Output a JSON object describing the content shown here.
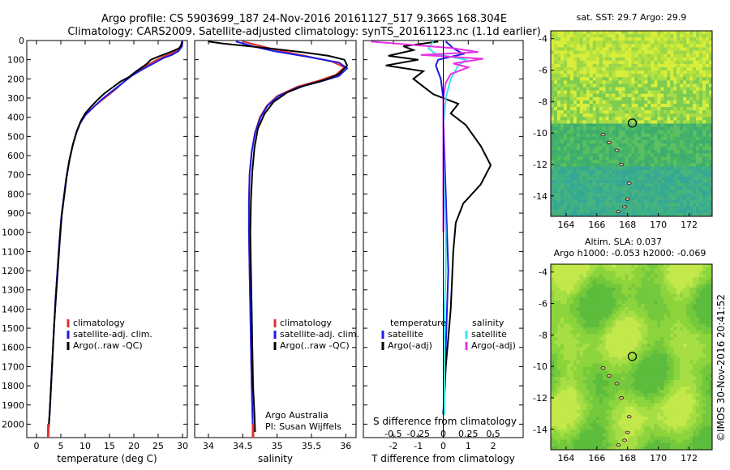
{
  "header": {
    "line1": "Argo profile: CS 5903699_187 24-Nov-2016 20161127_517 9.366S 168.304E",
    "line2": "Climatology: CARS2009. Satellite-adjusted climatology: synTS_20161123.nc (1.1d earlier)"
  },
  "side_text": "©IMOS 30-Nov-2016 20:41:52",
  "colors": {
    "clim": "#e03030",
    "sat": "#1a1ae6",
    "argo": "#000000",
    "sal_sat": "#33e6e6",
    "sal_argo": "#e633e6"
  },
  "chart_data": [
    {
      "type": "line",
      "id": "temperature",
      "xlabel": "temperature (deg C)",
      "xlim": [
        -2,
        31
      ],
      "ylim": [
        2070,
        0
      ],
      "xticks": [
        "0",
        "5",
        "10",
        "15",
        "20",
        "25",
        "30"
      ],
      "yticks": [
        "0",
        "100",
        "200",
        "300",
        "400",
        "500",
        "600",
        "700",
        "800",
        "900",
        "1000",
        "1100",
        "1200",
        "1300",
        "1400",
        "1500",
        "1600",
        "1700",
        "1800",
        "1900",
        "2000"
      ],
      "legend": [
        "climatology",
        "satellite-adj. clim.",
        "Argo(..raw -QC)"
      ],
      "series": [
        {
          "name": "climatology",
          "color": "#e03030",
          "points": [
            [
              30,
              5
            ],
            [
              29.8,
              30
            ],
            [
              29,
              50
            ],
            [
              27.5,
              70
            ],
            [
              26,
              85
            ],
            [
              24,
              110
            ],
            [
              22,
              140
            ],
            [
              20,
              175
            ],
            [
              18,
              215
            ],
            [
              16,
              260
            ],
            [
              14,
              300
            ],
            [
              12,
              340
            ],
            [
              10,
              390
            ],
            [
              9,
              430
            ],
            [
              8.2,
              480
            ],
            [
              7.4,
              550
            ],
            [
              6.7,
              630
            ],
            [
              6.1,
              720
            ],
            [
              5.6,
              820
            ],
            [
              5.1,
              920
            ],
            [
              4.7,
              1050
            ],
            [
              4.3,
              1200
            ],
            [
              3.9,
              1350
            ],
            [
              3.6,
              1500
            ],
            [
              3.3,
              1650
            ],
            [
              3.0,
              1800
            ],
            [
              2.7,
              1950
            ],
            [
              2.4,
              2060
            ]
          ]
        },
        {
          "name": "satellite-adj. clim.",
          "color": "#1a1ae6",
          "points": [
            [
              30,
              5
            ],
            [
              29.9,
              30
            ],
            [
              29.2,
              55
            ],
            [
              27.8,
              75
            ],
            [
              26.2,
              90
            ],
            [
              24,
              120
            ],
            [
              21.8,
              150
            ],
            [
              19.5,
              185
            ],
            [
              17.5,
              225
            ],
            [
              15.5,
              265
            ],
            [
              13.5,
              305
            ],
            [
              11.8,
              345
            ],
            [
              10,
              390
            ],
            [
              9,
              430
            ],
            [
              8.2,
              480
            ],
            [
              7.4,
              550
            ],
            [
              6.7,
              630
            ],
            [
              6.1,
              720
            ],
            [
              5.6,
              820
            ],
            [
              5.1,
              920
            ],
            [
              4.7,
              1050
            ],
            [
              4.3,
              1200
            ],
            [
              3.9,
              1350
            ],
            [
              3.6,
              1500
            ],
            [
              3.3,
              1650
            ],
            [
              3.0,
              1800
            ],
            [
              2.7,
              1950
            ],
            [
              2.4,
              2060
            ]
          ]
        },
        {
          "name": "Argo(..raw -QC)",
          "color": "#000000",
          "points": [
            [
              29.9,
              5
            ],
            [
              29.7,
              25
            ],
            [
              29.3,
              40
            ],
            [
              28,
              55
            ],
            [
              26.5,
              70
            ],
            [
              25.2,
              82
            ],
            [
              23.5,
              100
            ],
            [
              22.5,
              125
            ],
            [
              20.5,
              160
            ],
            [
              19,
              190
            ],
            [
              17.2,
              215
            ],
            [
              15.6,
              245
            ],
            [
              14,
              275
            ],
            [
              12.5,
              310
            ],
            [
              11.2,
              345
            ],
            [
              10,
              380
            ],
            [
              9.1,
              420
            ],
            [
              8.3,
              470
            ],
            [
              7.5,
              540
            ],
            [
              6.8,
              620
            ],
            [
              6.2,
              710
            ],
            [
              5.7,
              810
            ],
            [
              5.2,
              910
            ],
            [
              4.8,
              1040
            ],
            [
              4.4,
              1190
            ],
            [
              4.0,
              1340
            ],
            [
              3.6,
              1490
            ],
            [
              3.3,
              1640
            ],
            [
              3.0,
              1790
            ],
            [
              2.7,
              1940
            ],
            [
              2.4,
              2050
            ]
          ]
        }
      ]
    },
    {
      "type": "line",
      "id": "salinity",
      "xlabel": "salinity",
      "xlim": [
        33.8,
        36.15
      ],
      "ylim": [
        2070,
        0
      ],
      "xticks": [
        "34",
        "34.5",
        "35",
        "35.5",
        "36"
      ],
      "legend": [
        "climatology",
        "satellite-adj. clim.",
        "Argo(..raw -QC)"
      ],
      "annotation_lines": [
        "Argo Australia",
        "PI: Susan Wijffels"
      ],
      "series": [
        {
          "name": "climatology",
          "color": "#e03030",
          "points": [
            [
              34.5,
              5
            ],
            [
              34.72,
              25
            ],
            [
              35.0,
              50
            ],
            [
              35.4,
              80
            ],
            [
              35.8,
              110
            ],
            [
              35.98,
              140
            ],
            [
              35.85,
              180
            ],
            [
              35.6,
              210
            ],
            [
              35.3,
              240
            ],
            [
              35.0,
              290
            ],
            [
              34.85,
              340
            ],
            [
              34.75,
              400
            ],
            [
              34.68,
              480
            ],
            [
              34.63,
              580
            ],
            [
              34.6,
              700
            ],
            [
              34.59,
              850
            ],
            [
              34.59,
              1000
            ],
            [
              34.6,
              1200
            ],
            [
              34.61,
              1400
            ],
            [
              34.62,
              1600
            ],
            [
              34.63,
              1800
            ],
            [
              34.65,
              2060
            ]
          ]
        },
        {
          "name": "satellite-adj. clim.",
          "color": "#1a1ae6",
          "points": [
            [
              34.4,
              5
            ],
            [
              34.65,
              30
            ],
            [
              34.95,
              55
            ],
            [
              35.45,
              85
            ],
            [
              35.9,
              115
            ],
            [
              36.02,
              145
            ],
            [
              35.9,
              185
            ],
            [
              35.62,
              215
            ],
            [
              35.3,
              245
            ],
            [
              35.02,
              290
            ],
            [
              34.86,
              340
            ],
            [
              34.76,
              400
            ],
            [
              34.68,
              480
            ],
            [
              34.63,
              580
            ],
            [
              34.6,
              700
            ],
            [
              34.59,
              850
            ],
            [
              34.59,
              1000
            ],
            [
              34.6,
              1200
            ],
            [
              34.61,
              1400
            ],
            [
              34.62,
              1600
            ],
            [
              34.63,
              1800
            ],
            [
              34.65,
              2060
            ]
          ]
        },
        {
          "name": "Argo(..raw -QC)",
          "color": "#000000",
          "points": [
            [
              34.0,
              5
            ],
            [
              34.2,
              15
            ],
            [
              34.6,
              30
            ],
            [
              35.0,
              45
            ],
            [
              35.4,
              62
            ],
            [
              35.75,
              80
            ],
            [
              35.98,
              100
            ],
            [
              36.02,
              130
            ],
            [
              35.9,
              175
            ],
            [
              35.7,
              205
            ],
            [
              35.4,
              235
            ],
            [
              35.15,
              270
            ],
            [
              34.95,
              320
            ],
            [
              34.82,
              380
            ],
            [
              34.72,
              460
            ],
            [
              34.67,
              560
            ],
            [
              34.64,
              680
            ],
            [
              34.62,
              830
            ],
            [
              34.61,
              1000
            ],
            [
              34.62,
              1200
            ],
            [
              34.63,
              1400
            ],
            [
              34.64,
              1600
            ],
            [
              34.65,
              1800
            ],
            [
              34.67,
              1950
            ],
            [
              34.68,
              2040
            ]
          ]
        }
      ]
    },
    {
      "type": "line",
      "id": "difference",
      "xlabel": "T difference from climatology",
      "xlabel_top": "S difference from climatology",
      "xlim": [
        -3.2,
        3.2
      ],
      "ylim": [
        2070,
        0
      ],
      "xticks": [
        "-2",
        "-1",
        "0",
        "1",
        "2"
      ],
      "xticks_s": [
        "-0.5",
        "-0.25",
        "0",
        "0.25",
        "0.5"
      ],
      "legend_t": [
        "temperature",
        "satellite",
        "Argo(-adj)"
      ],
      "legend_s": [
        "salinity",
        "satellite",
        "Argo(-adj)"
      ],
      "series": [
        {
          "name": "T satellite",
          "color": "#1a1ae6",
          "points": [
            [
              0.1,
              5
            ],
            [
              0.4,
              40
            ],
            [
              0.8,
              70
            ],
            [
              -0.2,
              100
            ],
            [
              -0.3,
              130
            ],
            [
              -0.1,
              200
            ],
            [
              0,
              300
            ],
            [
              0,
              400
            ],
            [
              0.05,
              600
            ],
            [
              0.1,
              800
            ],
            [
              0.15,
              1000
            ],
            [
              0.2,
              1200
            ],
            [
              0.15,
              1400
            ],
            [
              0.1,
              1600
            ],
            [
              0.05,
              1800
            ],
            [
              0,
              1950
            ]
          ]
        },
        {
          "name": "T Argo(-adj)",
          "color": "#000000",
          "points": [
            [
              -0.2,
              5
            ],
            [
              -1.6,
              30
            ],
            [
              -1.2,
              50
            ],
            [
              -2.2,
              80
            ],
            [
              -1.0,
              100
            ],
            [
              -2.3,
              130
            ],
            [
              -0.8,
              160
            ],
            [
              -1.2,
              200
            ],
            [
              -0.8,
              240
            ],
            [
              -0.4,
              280
            ],
            [
              0.6,
              330
            ],
            [
              0.3,
              380
            ],
            [
              0.9,
              440
            ],
            [
              1.5,
              550
            ],
            [
              1.9,
              650
            ],
            [
              1.5,
              750
            ],
            [
              0.8,
              850
            ],
            [
              0.5,
              950
            ],
            [
              0.4,
              1100
            ],
            [
              0.35,
              1250
            ],
            [
              0.3,
              1400
            ],
            [
              0.2,
              1550
            ],
            [
              0.1,
              1700
            ],
            [
              0.05,
              1850
            ],
            [
              0,
              1950
            ]
          ]
        },
        {
          "name": "S satellite",
          "color": "#33e6e6",
          "points": [
            [
              -0.4,
              5
            ],
            [
              -0.6,
              40
            ],
            [
              -0.3,
              70
            ],
            [
              0.9,
              100
            ],
            [
              0.6,
              130
            ],
            [
              0.3,
              200
            ],
            [
              0.1,
              300
            ],
            [
              0.0,
              450
            ],
            [
              0.0,
              600
            ],
            [
              0.05,
              800
            ],
            [
              0.1,
              1000
            ],
            [
              0.1,
              1200
            ],
            [
              0.05,
              1400
            ],
            [
              0.05,
              1600
            ],
            [
              0.05,
              1800
            ],
            [
              0.05,
              1950
            ]
          ]
        },
        {
          "name": "S Argo(-adj)",
          "color": "#e633e6",
          "points": [
            [
              -2.9,
              5
            ],
            [
              -1.5,
              20
            ],
            [
              0.4,
              40
            ],
            [
              1.4,
              60
            ],
            [
              -0.9,
              75
            ],
            [
              1.6,
              95
            ],
            [
              0.4,
              120
            ],
            [
              1.0,
              140
            ],
            [
              0.3,
              175
            ],
            [
              0.1,
              220
            ],
            [
              0,
              300
            ],
            [
              0,
              400
            ],
            [
              0,
              600
            ],
            [
              0,
              800
            ],
            [
              0,
              1000
            ]
          ]
        }
      ]
    },
    {
      "type": "heatmap",
      "id": "sst_map",
      "title": "sat. SST: 29.7 Argo: 29.9",
      "xlim": [
        163,
        173.5
      ],
      "ylim": [
        -15.3,
        -3.5
      ],
      "xticks": [
        "164",
        "166",
        "168",
        "170",
        "172"
      ],
      "yticks": [
        "-4",
        "-6",
        "-8",
        "-10",
        "-12",
        "-14"
      ],
      "marker": [
        168.304,
        -9.366
      ]
    },
    {
      "type": "heatmap",
      "id": "sla_map",
      "title": "Altim. SLA: 0.037",
      "subtitle": "Argo h1000: -0.053 h2000: -0.069",
      "xlim": [
        163,
        173.5
      ],
      "ylim": [
        -15.3,
        -3.5
      ],
      "xticks": [
        "164",
        "166",
        "168",
        "170",
        "172"
      ],
      "yticks": [
        "-4",
        "-6",
        "-8",
        "-10",
        "-12",
        "-14"
      ],
      "marker": [
        168.304,
        -9.366
      ]
    }
  ]
}
